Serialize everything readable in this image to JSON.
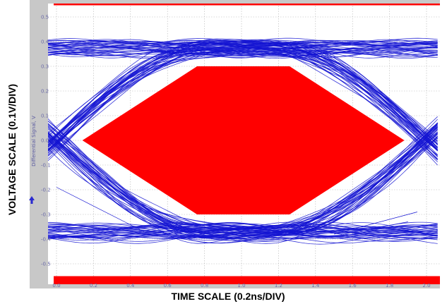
{
  "chart_data": {
    "type": "eye-diagram",
    "title": "",
    "xlabel": "TIME SCALE (0.2ns/DIV)",
    "ylabel": "VOLTAGE SCALE (0.1V/DIV)",
    "inner_ylabel": "Differential Signal, V",
    "x_ticks": [
      "0.0",
      "0.2",
      "0.4",
      "0.6",
      "0.8",
      "1.0",
      "1.2",
      "1.4",
      "1.6",
      "1.8",
      "2.0"
    ],
    "y_ticks": [
      "0.5",
      "0.4",
      "0.3",
      "0.2",
      "0.1",
      "0.0",
      "-0.1",
      "-0.2",
      "-0.3",
      "-0.4",
      "-0.5"
    ],
    "xlim": [
      0.0,
      2.0
    ],
    "ylim": [
      -0.6,
      0.6
    ],
    "grid": true,
    "trace": {
      "high_level": 0.375,
      "low_level": -0.375,
      "spread": 0.03,
      "crossing_x": [
        0.0,
        2.0
      ],
      "crossing_y": 0.0
    },
    "mask": {
      "polygon": [
        [
          0.14,
          0.0
        ],
        [
          0.76,
          0.3
        ],
        [
          1.26,
          0.3
        ],
        [
          1.88,
          0.0
        ],
        [
          1.26,
          -0.3
        ],
        [
          0.76,
          -0.3
        ]
      ],
      "top_band": [
        0.55,
        0.6
      ],
      "bottom_band": [
        -0.6,
        -0.55
      ]
    },
    "colors": {
      "background": "#ffffff",
      "panel": "#c8c8c8",
      "trace": "#1414d2",
      "mask": "#ff0000",
      "grid": "#b4b4b4",
      "tick": "#6a6aa8"
    }
  }
}
